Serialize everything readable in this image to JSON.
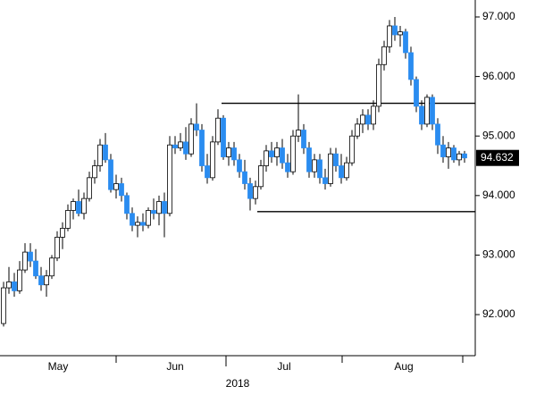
{
  "chart_data": {
    "type": "candlestick",
    "series": [
      {
        "up_color": "#ffffff",
        "down_color": "#2a8cf0",
        "open": [
          91.85,
          92.45,
          92.55,
          92.4,
          92.75,
          93.05,
          92.9,
          92.65,
          92.5,
          92.65,
          92.95,
          93.3,
          93.45,
          93.75,
          93.9,
          93.7,
          93.95,
          94.3,
          94.5,
          94.85,
          94.6,
          94.1,
          94.2,
          94.0,
          93.7,
          93.5,
          93.55,
          93.5,
          93.75,
          93.7,
          93.9,
          93.7,
          94.85,
          94.8,
          94.9,
          94.7,
          95.2,
          95.1,
          94.5,
          94.3,
          94.9,
          95.3,
          94.65,
          94.8,
          94.6,
          94.4,
          94.2,
          93.95,
          94.15,
          94.5,
          94.75,
          94.65,
          94.8,
          94.55,
          94.4,
          95.0,
          95.1,
          94.8,
          94.4,
          94.6,
          94.3,
          94.2,
          94.7,
          94.5,
          94.3,
          94.55,
          95.0,
          95.2,
          95.35,
          95.2,
          95.5,
          96.2,
          96.5,
          96.85,
          96.7,
          96.75,
          96.4,
          95.95,
          95.5,
          95.2,
          95.65,
          95.2,
          94.85,
          94.65,
          94.8,
          94.6,
          94.7
        ],
        "high": [
          92.55,
          92.8,
          92.7,
          92.9,
          93.2,
          93.2,
          93.1,
          92.8,
          92.75,
          93.0,
          93.4,
          93.55,
          93.85,
          93.95,
          94.1,
          94.05,
          94.4,
          94.6,
          94.95,
          95.05,
          94.7,
          94.35,
          94.3,
          94.05,
          93.8,
          93.65,
          93.7,
          93.8,
          93.95,
          94.0,
          94.05,
          95.0,
          95.0,
          95.05,
          95.15,
          95.3,
          95.55,
          95.2,
          94.7,
          95.0,
          95.45,
          95.35,
          94.9,
          94.9,
          94.7,
          94.6,
          94.3,
          94.25,
          94.6,
          94.85,
          94.9,
          94.9,
          94.95,
          94.7,
          95.1,
          95.7,
          95.2,
          94.9,
          94.7,
          94.7,
          94.45,
          94.8,
          94.8,
          94.7,
          94.65,
          95.1,
          95.3,
          95.45,
          95.45,
          95.6,
          96.3,
          96.6,
          96.95,
          97.0,
          96.85,
          96.8,
          96.5,
          96.0,
          95.6,
          95.7,
          95.7,
          95.3,
          95.0,
          94.9,
          94.85,
          94.75,
          94.75
        ],
        "low": [
          91.8,
          92.35,
          92.3,
          92.35,
          92.7,
          92.8,
          92.6,
          92.4,
          92.3,
          92.6,
          92.9,
          93.1,
          93.4,
          93.6,
          93.65,
          93.6,
          93.9,
          94.2,
          94.4,
          94.55,
          94.05,
          93.95,
          93.9,
          93.6,
          93.4,
          93.3,
          93.4,
          93.45,
          93.6,
          93.5,
          93.3,
          93.65,
          94.7,
          94.75,
          94.6,
          94.65,
          95.0,
          94.4,
          94.2,
          94.25,
          94.85,
          94.6,
          94.5,
          94.5,
          94.3,
          94.1,
          93.75,
          93.85,
          94.1,
          94.4,
          94.55,
          94.5,
          94.45,
          94.3,
          94.35,
          94.9,
          94.7,
          94.3,
          94.3,
          94.2,
          94.1,
          94.15,
          94.4,
          94.2,
          94.25,
          94.5,
          94.95,
          95.05,
          95.1,
          95.1,
          95.4,
          96.1,
          96.4,
          96.6,
          96.5,
          96.3,
          95.85,
          95.4,
          95.1,
          95.15,
          95.1,
          94.7,
          94.55,
          94.45,
          94.55,
          94.5,
          94.55
        ],
        "close": [
          92.45,
          92.55,
          92.4,
          92.75,
          93.05,
          92.9,
          92.65,
          92.5,
          92.65,
          92.95,
          93.3,
          93.45,
          93.75,
          93.9,
          93.7,
          93.95,
          94.3,
          94.5,
          94.85,
          94.6,
          94.1,
          94.2,
          94.0,
          93.7,
          93.5,
          93.55,
          93.5,
          93.75,
          93.7,
          93.9,
          93.7,
          94.85,
          94.8,
          94.9,
          94.7,
          95.2,
          95.1,
          94.5,
          94.3,
          94.9,
          95.3,
          94.65,
          94.8,
          94.6,
          94.4,
          94.2,
          93.95,
          94.15,
          94.5,
          94.75,
          94.65,
          94.8,
          94.55,
          94.4,
          95.0,
          95.1,
          94.8,
          94.4,
          94.6,
          94.3,
          94.2,
          94.7,
          94.5,
          94.3,
          94.55,
          95.0,
          95.2,
          95.35,
          95.2,
          95.5,
          96.2,
          96.5,
          96.85,
          96.7,
          96.75,
          96.4,
          95.95,
          95.5,
          95.2,
          95.65,
          95.2,
          94.85,
          94.65,
          94.8,
          94.6,
          94.7,
          94.632
        ]
      }
    ],
    "levels": [
      95.55,
      93.73
    ],
    "last_price": 94.632,
    "x_labels": [
      "May",
      "Jun",
      "Jul",
      "Aug"
    ],
    "x_title": "2018",
    "ylim": [
      91.31,
      97.285
    ],
    "yticks": [
      {
        "value": 92,
        "label": "92.000"
      },
      {
        "value": 93,
        "label": "93.000"
      },
      {
        "value": 94,
        "label": "94.000"
      },
      {
        "value": 95,
        "label": "95.000"
      },
      {
        "value": 96,
        "label": "96.000"
      },
      {
        "value": 97,
        "label": "97.000"
      }
    ]
  }
}
